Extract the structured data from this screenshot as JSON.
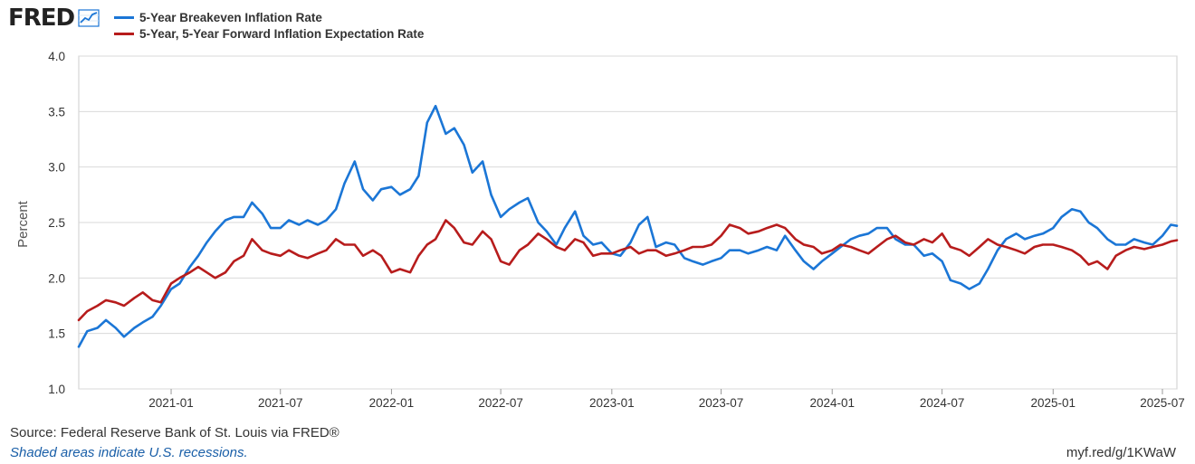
{
  "logo": {
    "text": "FRED",
    "icon": "chart-line-icon"
  },
  "legend": [
    {
      "name": "5-Year Breakeven Inflation Rate",
      "color": "#1b76d6"
    },
    {
      "name": "5-Year, 5-Year Forward Inflation Expectation Rate",
      "color": "#b71c1c"
    }
  ],
  "footer": {
    "source": "Source: Federal Reserve Bank of St. Louis via FRED®",
    "shaded": "Shaded areas indicate U.S. recessions.",
    "link": "myf.red/g/1KWaW"
  },
  "chart_data": {
    "type": "line",
    "ylabel": "Percent",
    "ylim": [
      1.0,
      4.0
    ],
    "yticks": [
      "1.0",
      "1.5",
      "2.0",
      "2.5",
      "3.0",
      "3.5",
      "4.0"
    ],
    "xlim": [
      "2020-08-01",
      "2025-07-25"
    ],
    "xticks": [
      "2021-01",
      "2021-07",
      "2022-01",
      "2022-07",
      "2023-01",
      "2023-07",
      "2024-01",
      "2024-07",
      "2025-01",
      "2025-07"
    ],
    "grid": true,
    "series": [
      {
        "name": "5-Year Breakeven Inflation Rate",
        "color": "#1b76d6",
        "points": [
          [
            "2020-08-01",
            1.38
          ],
          [
            "2020-08-15",
            1.52
          ],
          [
            "2020-09-01",
            1.55
          ],
          [
            "2020-09-15",
            1.62
          ],
          [
            "2020-10-01",
            1.55
          ],
          [
            "2020-10-15",
            1.47
          ],
          [
            "2020-11-01",
            1.55
          ],
          [
            "2020-11-15",
            1.6
          ],
          [
            "2020-12-01",
            1.65
          ],
          [
            "2020-12-15",
            1.75
          ],
          [
            "2021-01-01",
            1.9
          ],
          [
            "2021-01-15",
            1.95
          ],
          [
            "2021-02-01",
            2.1
          ],
          [
            "2021-02-15",
            2.2
          ],
          [
            "2021-03-01",
            2.32
          ],
          [
            "2021-03-15",
            2.42
          ],
          [
            "2021-04-01",
            2.52
          ],
          [
            "2021-04-15",
            2.55
          ],
          [
            "2021-05-01",
            2.55
          ],
          [
            "2021-05-15",
            2.68
          ],
          [
            "2021-06-01",
            2.58
          ],
          [
            "2021-06-15",
            2.45
          ],
          [
            "2021-07-01",
            2.45
          ],
          [
            "2021-07-15",
            2.52
          ],
          [
            "2021-08-01",
            2.48
          ],
          [
            "2021-08-15",
            2.52
          ],
          [
            "2021-09-01",
            2.48
          ],
          [
            "2021-09-15",
            2.52
          ],
          [
            "2021-10-01",
            2.62
          ],
          [
            "2021-10-15",
            2.85
          ],
          [
            "2021-11-01",
            3.05
          ],
          [
            "2021-11-15",
            2.8
          ],
          [
            "2021-12-01",
            2.7
          ],
          [
            "2021-12-15",
            2.8
          ],
          [
            "2022-01-01",
            2.82
          ],
          [
            "2022-01-15",
            2.75
          ],
          [
            "2022-02-01",
            2.8
          ],
          [
            "2022-02-15",
            2.92
          ],
          [
            "2022-03-01",
            3.4
          ],
          [
            "2022-03-15",
            3.55
          ],
          [
            "2022-04-01",
            3.3
          ],
          [
            "2022-04-15",
            3.35
          ],
          [
            "2022-05-01",
            3.2
          ],
          [
            "2022-05-15",
            2.95
          ],
          [
            "2022-06-01",
            3.05
          ],
          [
            "2022-06-15",
            2.75
          ],
          [
            "2022-07-01",
            2.55
          ],
          [
            "2022-07-15",
            2.62
          ],
          [
            "2022-08-01",
            2.68
          ],
          [
            "2022-08-15",
            2.72
          ],
          [
            "2022-09-01",
            2.5
          ],
          [
            "2022-09-15",
            2.42
          ],
          [
            "2022-10-01",
            2.3
          ],
          [
            "2022-10-15",
            2.45
          ],
          [
            "2022-11-01",
            2.6
          ],
          [
            "2022-11-15",
            2.38
          ],
          [
            "2022-12-01",
            2.3
          ],
          [
            "2022-12-15",
            2.32
          ],
          [
            "2023-01-01",
            2.22
          ],
          [
            "2023-01-15",
            2.2
          ],
          [
            "2023-02-01",
            2.32
          ],
          [
            "2023-02-15",
            2.48
          ],
          [
            "2023-03-01",
            2.55
          ],
          [
            "2023-03-15",
            2.28
          ],
          [
            "2023-04-01",
            2.32
          ],
          [
            "2023-04-15",
            2.3
          ],
          [
            "2023-05-01",
            2.18
          ],
          [
            "2023-05-15",
            2.15
          ],
          [
            "2023-06-01",
            2.12
          ],
          [
            "2023-06-15",
            2.15
          ],
          [
            "2023-07-01",
            2.18
          ],
          [
            "2023-07-15",
            2.25
          ],
          [
            "2023-08-01",
            2.25
          ],
          [
            "2023-08-15",
            2.22
          ],
          [
            "2023-09-01",
            2.25
          ],
          [
            "2023-09-15",
            2.28
          ],
          [
            "2023-10-01",
            2.25
          ],
          [
            "2023-10-15",
            2.38
          ],
          [
            "2023-11-01",
            2.25
          ],
          [
            "2023-11-15",
            2.15
          ],
          [
            "2023-12-01",
            2.08
          ],
          [
            "2023-12-15",
            2.15
          ],
          [
            "2024-01-01",
            2.22
          ],
          [
            "2024-01-15",
            2.28
          ],
          [
            "2024-02-01",
            2.35
          ],
          [
            "2024-02-15",
            2.38
          ],
          [
            "2024-03-01",
            2.4
          ],
          [
            "2024-03-15",
            2.45
          ],
          [
            "2024-04-01",
            2.45
          ],
          [
            "2024-04-15",
            2.35
          ],
          [
            "2024-05-01",
            2.3
          ],
          [
            "2024-05-15",
            2.3
          ],
          [
            "2024-06-01",
            2.2
          ],
          [
            "2024-06-15",
            2.22
          ],
          [
            "2024-07-01",
            2.15
          ],
          [
            "2024-07-15",
            1.98
          ],
          [
            "2024-08-01",
            1.95
          ],
          [
            "2024-08-15",
            1.9
          ],
          [
            "2024-09-01",
            1.95
          ],
          [
            "2024-09-15",
            2.08
          ],
          [
            "2024-10-01",
            2.25
          ],
          [
            "2024-10-15",
            2.35
          ],
          [
            "2024-11-01",
            2.4
          ],
          [
            "2024-11-15",
            2.35
          ],
          [
            "2024-12-01",
            2.38
          ],
          [
            "2024-12-15",
            2.4
          ],
          [
            "2025-01-01",
            2.45
          ],
          [
            "2025-01-15",
            2.55
          ],
          [
            "2025-02-01",
            2.62
          ],
          [
            "2025-02-15",
            2.6
          ],
          [
            "2025-03-01",
            2.5
          ],
          [
            "2025-03-15",
            2.45
          ],
          [
            "2025-04-01",
            2.35
          ],
          [
            "2025-04-15",
            2.3
          ],
          [
            "2025-05-01",
            2.3
          ],
          [
            "2025-05-15",
            2.35
          ],
          [
            "2025-06-01",
            2.32
          ],
          [
            "2025-06-15",
            2.3
          ],
          [
            "2025-07-01",
            2.38
          ],
          [
            "2025-07-15",
            2.48
          ],
          [
            "2025-07-25",
            2.47
          ]
        ]
      },
      {
        "name": "5-Year, 5-Year Forward Inflation Expectation Rate",
        "color": "#b71c1c",
        "points": [
          [
            "2020-08-01",
            1.62
          ],
          [
            "2020-08-15",
            1.7
          ],
          [
            "2020-09-01",
            1.75
          ],
          [
            "2020-09-15",
            1.8
          ],
          [
            "2020-10-01",
            1.78
          ],
          [
            "2020-10-15",
            1.75
          ],
          [
            "2020-11-01",
            1.82
          ],
          [
            "2020-11-15",
            1.87
          ],
          [
            "2020-12-01",
            1.8
          ],
          [
            "2020-12-15",
            1.78
          ],
          [
            "2021-01-01",
            1.95
          ],
          [
            "2021-01-15",
            2.0
          ],
          [
            "2021-02-01",
            2.05
          ],
          [
            "2021-02-15",
            2.1
          ],
          [
            "2021-03-01",
            2.05
          ],
          [
            "2021-03-15",
            2.0
          ],
          [
            "2021-04-01",
            2.05
          ],
          [
            "2021-04-15",
            2.15
          ],
          [
            "2021-05-01",
            2.2
          ],
          [
            "2021-05-15",
            2.35
          ],
          [
            "2021-06-01",
            2.25
          ],
          [
            "2021-06-15",
            2.22
          ],
          [
            "2021-07-01",
            2.2
          ],
          [
            "2021-07-15",
            2.25
          ],
          [
            "2021-08-01",
            2.2
          ],
          [
            "2021-08-15",
            2.18
          ],
          [
            "2021-09-01",
            2.22
          ],
          [
            "2021-09-15",
            2.25
          ],
          [
            "2021-10-01",
            2.35
          ],
          [
            "2021-10-15",
            2.3
          ],
          [
            "2021-11-01",
            2.3
          ],
          [
            "2021-11-15",
            2.2
          ],
          [
            "2021-12-01",
            2.25
          ],
          [
            "2021-12-15",
            2.2
          ],
          [
            "2022-01-01",
            2.05
          ],
          [
            "2022-01-15",
            2.08
          ],
          [
            "2022-02-01",
            2.05
          ],
          [
            "2022-02-15",
            2.2
          ],
          [
            "2022-03-01",
            2.3
          ],
          [
            "2022-03-15",
            2.35
          ],
          [
            "2022-04-01",
            2.52
          ],
          [
            "2022-04-15",
            2.45
          ],
          [
            "2022-05-01",
            2.32
          ],
          [
            "2022-05-15",
            2.3
          ],
          [
            "2022-06-01",
            2.42
          ],
          [
            "2022-06-15",
            2.35
          ],
          [
            "2022-07-01",
            2.15
          ],
          [
            "2022-07-15",
            2.12
          ],
          [
            "2022-08-01",
            2.25
          ],
          [
            "2022-08-15",
            2.3
          ],
          [
            "2022-09-01",
            2.4
          ],
          [
            "2022-09-15",
            2.35
          ],
          [
            "2022-10-01",
            2.28
          ],
          [
            "2022-10-15",
            2.25
          ],
          [
            "2022-11-01",
            2.35
          ],
          [
            "2022-11-15",
            2.32
          ],
          [
            "2022-12-01",
            2.2
          ],
          [
            "2022-12-15",
            2.22
          ],
          [
            "2023-01-01",
            2.22
          ],
          [
            "2023-01-15",
            2.25
          ],
          [
            "2023-02-01",
            2.28
          ],
          [
            "2023-02-15",
            2.22
          ],
          [
            "2023-03-01",
            2.25
          ],
          [
            "2023-03-15",
            2.25
          ],
          [
            "2023-04-01",
            2.2
          ],
          [
            "2023-04-15",
            2.22
          ],
          [
            "2023-05-01",
            2.25
          ],
          [
            "2023-05-15",
            2.28
          ],
          [
            "2023-06-01",
            2.28
          ],
          [
            "2023-06-15",
            2.3
          ],
          [
            "2023-07-01",
            2.38
          ],
          [
            "2023-07-15",
            2.48
          ],
          [
            "2023-08-01",
            2.45
          ],
          [
            "2023-08-15",
            2.4
          ],
          [
            "2023-09-01",
            2.42
          ],
          [
            "2023-09-15",
            2.45
          ],
          [
            "2023-10-01",
            2.48
          ],
          [
            "2023-10-15",
            2.45
          ],
          [
            "2023-11-01",
            2.35
          ],
          [
            "2023-11-15",
            2.3
          ],
          [
            "2023-12-01",
            2.28
          ],
          [
            "2023-12-15",
            2.22
          ],
          [
            "2024-01-01",
            2.25
          ],
          [
            "2024-01-15",
            2.3
          ],
          [
            "2024-02-01",
            2.28
          ],
          [
            "2024-02-15",
            2.25
          ],
          [
            "2024-03-01",
            2.22
          ],
          [
            "2024-03-15",
            2.28
          ],
          [
            "2024-04-01",
            2.35
          ],
          [
            "2024-04-15",
            2.38
          ],
          [
            "2024-05-01",
            2.32
          ],
          [
            "2024-05-15",
            2.3
          ],
          [
            "2024-06-01",
            2.35
          ],
          [
            "2024-06-15",
            2.32
          ],
          [
            "2024-07-01",
            2.4
          ],
          [
            "2024-07-15",
            2.28
          ],
          [
            "2024-08-01",
            2.25
          ],
          [
            "2024-08-15",
            2.2
          ],
          [
            "2024-09-01",
            2.28
          ],
          [
            "2024-09-15",
            2.35
          ],
          [
            "2024-10-01",
            2.3
          ],
          [
            "2024-10-15",
            2.28
          ],
          [
            "2024-11-01",
            2.25
          ],
          [
            "2024-11-15",
            2.22
          ],
          [
            "2024-12-01",
            2.28
          ],
          [
            "2024-12-15",
            2.3
          ],
          [
            "2025-01-01",
            2.3
          ],
          [
            "2025-01-15",
            2.28
          ],
          [
            "2025-02-01",
            2.25
          ],
          [
            "2025-02-15",
            2.2
          ],
          [
            "2025-03-01",
            2.12
          ],
          [
            "2025-03-15",
            2.15
          ],
          [
            "2025-04-01",
            2.08
          ],
          [
            "2025-04-15",
            2.2
          ],
          [
            "2025-05-01",
            2.25
          ],
          [
            "2025-05-15",
            2.28
          ],
          [
            "2025-06-01",
            2.26
          ],
          [
            "2025-06-15",
            2.28
          ],
          [
            "2025-07-01",
            2.3
          ],
          [
            "2025-07-15",
            2.33
          ],
          [
            "2025-07-25",
            2.34
          ]
        ]
      }
    ]
  }
}
